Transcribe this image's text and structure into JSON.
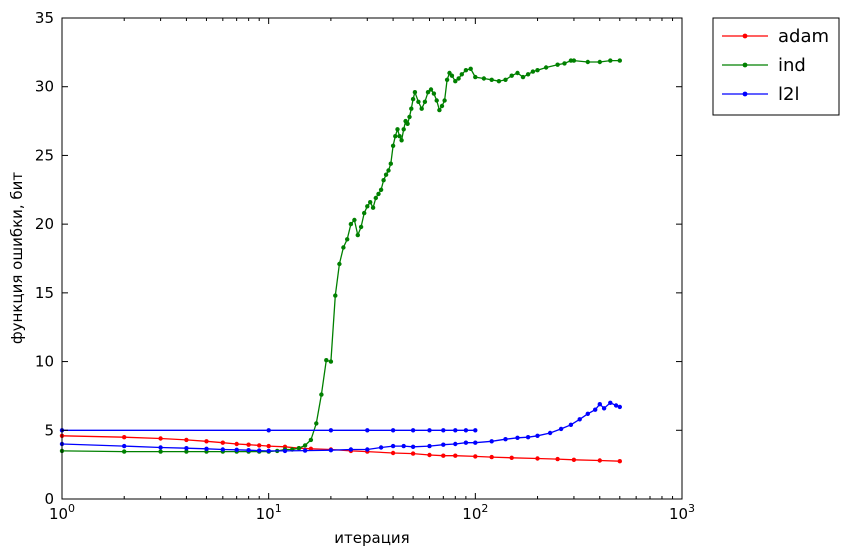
{
  "chart_data": {
    "type": "line",
    "xlabel": "итерация",
    "ylabel": "функция ошибки, бит",
    "x_scale": "log",
    "xlim": [
      1,
      1000
    ],
    "ylim": [
      0,
      35
    ],
    "x_ticks": [
      1,
      10,
      100,
      1000
    ],
    "x_tick_labels": [
      {
        "base": "10",
        "exp": "0"
      },
      {
        "base": "10",
        "exp": "1"
      },
      {
        "base": "10",
        "exp": "2"
      },
      {
        "base": "10",
        "exp": "3"
      }
    ],
    "y_ticks": [
      0,
      5,
      10,
      15,
      20,
      25,
      30,
      35
    ],
    "y_tick_labels": [
      "0",
      "5",
      "10",
      "15",
      "20",
      "25",
      "30",
      "35"
    ],
    "grid": false,
    "legend_position": "outside-top-right",
    "series": [
      {
        "name": "adam",
        "color": "#ff0000",
        "points": [
          [
            1,
            4.6
          ],
          [
            2,
            4.5
          ],
          [
            3,
            4.4
          ],
          [
            4,
            4.3
          ],
          [
            5,
            4.2
          ],
          [
            6,
            4.1
          ],
          [
            7,
            4.0
          ],
          [
            8,
            3.95
          ],
          [
            9,
            3.9
          ],
          [
            10,
            3.85
          ],
          [
            12,
            3.8
          ],
          [
            14,
            3.7
          ],
          [
            16,
            3.65
          ],
          [
            20,
            3.6
          ],
          [
            25,
            3.5
          ],
          [
            30,
            3.45
          ],
          [
            40,
            3.35
          ],
          [
            50,
            3.3
          ],
          [
            60,
            3.2
          ],
          [
            70,
            3.15
          ],
          [
            80,
            3.15
          ],
          [
            100,
            3.1
          ],
          [
            120,
            3.05
          ],
          [
            150,
            3.0
          ],
          [
            200,
            2.95
          ],
          [
            250,
            2.9
          ],
          [
            300,
            2.85
          ],
          [
            400,
            2.8
          ],
          [
            500,
            2.75
          ]
        ]
      },
      {
        "name": "ind",
        "color": "#008000",
        "points": [
          [
            1,
            3.5
          ],
          [
            2,
            3.45
          ],
          [
            3,
            3.45
          ],
          [
            4,
            3.45
          ],
          [
            5,
            3.45
          ],
          [
            6,
            3.45
          ],
          [
            7,
            3.45
          ],
          [
            8,
            3.45
          ],
          [
            9,
            3.45
          ],
          [
            10,
            3.45
          ],
          [
            11,
            3.5
          ],
          [
            12,
            3.6
          ],
          [
            13,
            3.6
          ],
          [
            14,
            3.7
          ],
          [
            15,
            3.9
          ],
          [
            16,
            4.3
          ],
          [
            17,
            5.5
          ],
          [
            18,
            7.6
          ],
          [
            19,
            10.1
          ],
          [
            20,
            10.0
          ],
          [
            21,
            14.8
          ],
          [
            22,
            17.1
          ],
          [
            23,
            18.3
          ],
          [
            24,
            18.9
          ],
          [
            25,
            20.0
          ],
          [
            26,
            20.3
          ],
          [
            27,
            19.2
          ],
          [
            28,
            19.8
          ],
          [
            29,
            20.8
          ],
          [
            30,
            21.3
          ],
          [
            31,
            21.6
          ],
          [
            32,
            21.2
          ],
          [
            33,
            21.9
          ],
          [
            34,
            22.2
          ],
          [
            35,
            22.5
          ],
          [
            36,
            23.2
          ],
          [
            37,
            23.6
          ],
          [
            38,
            23.9
          ],
          [
            39,
            24.4
          ],
          [
            40,
            25.7
          ],
          [
            41,
            26.4
          ],
          [
            42,
            26.9
          ],
          [
            43,
            26.4
          ],
          [
            44,
            26.1
          ],
          [
            45,
            26.9
          ],
          [
            46,
            27.5
          ],
          [
            47,
            27.3
          ],
          [
            48,
            27.8
          ],
          [
            49,
            28.4
          ],
          [
            50,
            29.1
          ],
          [
            51,
            29.6
          ],
          [
            53,
            28.9
          ],
          [
            55,
            28.4
          ],
          [
            57,
            28.9
          ],
          [
            59,
            29.6
          ],
          [
            61,
            29.8
          ],
          [
            63,
            29.5
          ],
          [
            65,
            29.0
          ],
          [
            67,
            28.3
          ],
          [
            69,
            28.6
          ],
          [
            71,
            29.0
          ],
          [
            73,
            30.5
          ],
          [
            75,
            31.0
          ],
          [
            77,
            30.8
          ],
          [
            80,
            30.4
          ],
          [
            83,
            30.6
          ],
          [
            86,
            30.9
          ],
          [
            90,
            31.2
          ],
          [
            95,
            31.3
          ],
          [
            100,
            30.7
          ],
          [
            110,
            30.6
          ],
          [
            120,
            30.5
          ],
          [
            130,
            30.4
          ],
          [
            140,
            30.5
          ],
          [
            150,
            30.8
          ],
          [
            160,
            31.0
          ],
          [
            170,
            30.7
          ],
          [
            180,
            30.9
          ],
          [
            190,
            31.1
          ],
          [
            200,
            31.2
          ],
          [
            220,
            31.4
          ],
          [
            250,
            31.6
          ],
          [
            270,
            31.7
          ],
          [
            290,
            31.9
          ],
          [
            300,
            31.9
          ],
          [
            350,
            31.8
          ],
          [
            400,
            31.8
          ],
          [
            450,
            31.9
          ],
          [
            500,
            31.9
          ]
        ]
      },
      {
        "name": "l2l",
        "color": "#0000ff",
        "points": [
          [
            1,
            4.0
          ],
          [
            2,
            3.85
          ],
          [
            3,
            3.75
          ],
          [
            4,
            3.7
          ],
          [
            5,
            3.65
          ],
          [
            6,
            3.6
          ],
          [
            7,
            3.58
          ],
          [
            8,
            3.55
          ],
          [
            9,
            3.52
          ],
          [
            10,
            3.5
          ],
          [
            12,
            3.5
          ],
          [
            15,
            3.52
          ],
          [
            20,
            3.55
          ],
          [
            25,
            3.6
          ],
          [
            30,
            3.6
          ],
          [
            35,
            3.75
          ],
          [
            40,
            3.85
          ],
          [
            45,
            3.85
          ],
          [
            50,
            3.8
          ],
          [
            60,
            3.85
          ],
          [
            70,
            3.95
          ],
          [
            80,
            4.0
          ],
          [
            90,
            4.1
          ],
          [
            100,
            4.1
          ],
          [
            120,
            4.2
          ],
          [
            140,
            4.35
          ],
          [
            160,
            4.45
          ],
          [
            180,
            4.5
          ],
          [
            200,
            4.6
          ],
          [
            230,
            4.8
          ],
          [
            260,
            5.1
          ],
          [
            290,
            5.4
          ],
          [
            320,
            5.8
          ],
          [
            350,
            6.2
          ],
          [
            380,
            6.5
          ],
          [
            400,
            6.9
          ],
          [
            420,
            6.6
          ],
          [
            450,
            7.0
          ],
          [
            480,
            6.8
          ],
          [
            500,
            6.7
          ]
        ]
      },
      {
        "name": "",
        "color": "#0000ff",
        "points": [
          [
            1,
            5.0
          ],
          [
            10,
            5.0
          ],
          [
            20,
            5.0
          ],
          [
            30,
            5.0
          ],
          [
            40,
            5.0
          ],
          [
            50,
            5.0
          ],
          [
            60,
            5.0
          ],
          [
            70,
            5.0
          ],
          [
            80,
            5.0
          ],
          [
            90,
            5.0
          ],
          [
            100,
            5.0
          ]
        ]
      }
    ]
  }
}
